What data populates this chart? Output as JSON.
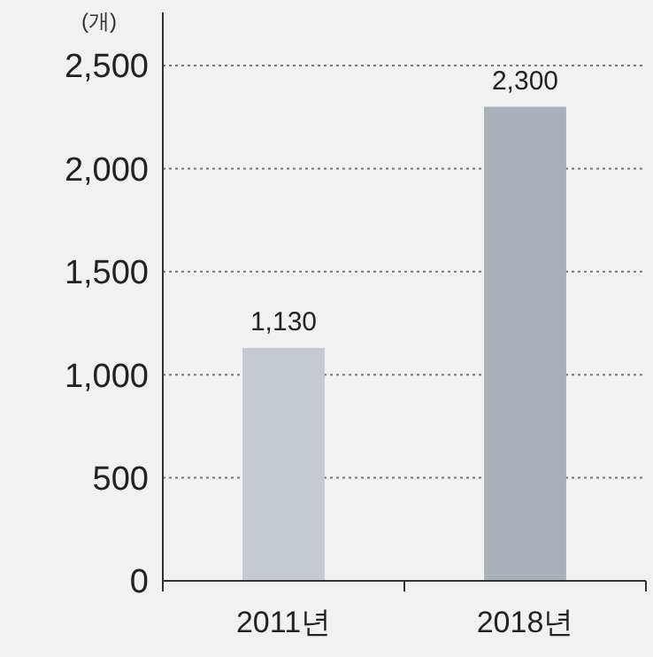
{
  "chart_data": {
    "type": "bar",
    "ylabel": "(개)",
    "categories": [
      "2011년",
      "2018년"
    ],
    "values": [
      1130,
      2300
    ],
    "colors": [
      "#c5cad0",
      "#a9b0b7"
    ],
    "ylim": [
      0,
      2500
    ],
    "yticks": [
      {
        "value": 0,
        "label": "0"
      },
      {
        "value": 500,
        "label": "500"
      },
      {
        "value": 1000,
        "label": "1,000"
      },
      {
        "value": 1500,
        "label": "1,500"
      },
      {
        "value": 2000,
        "label": "2,000"
      },
      {
        "value": 2500,
        "label": "2,500"
      }
    ],
    "grid": "y",
    "value_labels": [
      "1,130",
      "2,300"
    ]
  }
}
